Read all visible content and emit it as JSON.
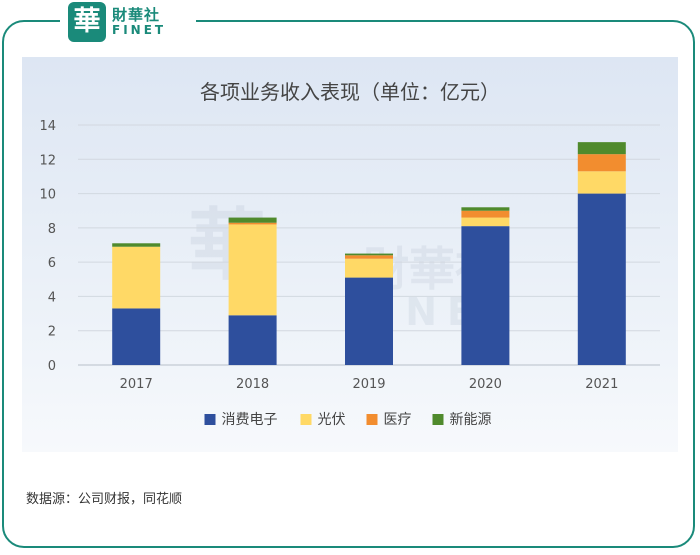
{
  "brand": {
    "mark_char": "華",
    "name_cn": "財華社",
    "name_en": "FINET",
    "watermark_cn": "財華社",
    "watermark_en": "FINET"
  },
  "source_text": "数据源：公司财报，同花顺",
  "colors": {
    "frame": "#1a8a7a",
    "消费电子": "#2e4f9d",
    "光伏": "#ffd966",
    "医疗": "#f28d2f",
    "新能源": "#4f8a2c"
  },
  "chart_data": {
    "type": "bar",
    "stacked": true,
    "title": "各项业务收入表现（单位：亿元）",
    "categories": [
      "2017",
      "2018",
      "2019",
      "2020",
      "2021"
    ],
    "series": [
      {
        "name": "消费电子",
        "values": [
          3.3,
          2.9,
          5.1,
          8.1,
          10.0
        ]
      },
      {
        "name": "光伏",
        "values": [
          3.6,
          5.3,
          1.1,
          0.5,
          1.3
        ]
      },
      {
        "name": "医疗",
        "values": [
          0.0,
          0.1,
          0.2,
          0.4,
          1.0
        ]
      },
      {
        "name": "新能源",
        "values": [
          0.2,
          0.3,
          0.1,
          0.2,
          0.7
        ]
      }
    ],
    "ylim": [
      0,
      14
    ],
    "yticks": [
      0,
      2,
      4,
      6,
      8,
      10,
      12,
      14
    ],
    "grid": true,
    "legend": "bottom"
  }
}
